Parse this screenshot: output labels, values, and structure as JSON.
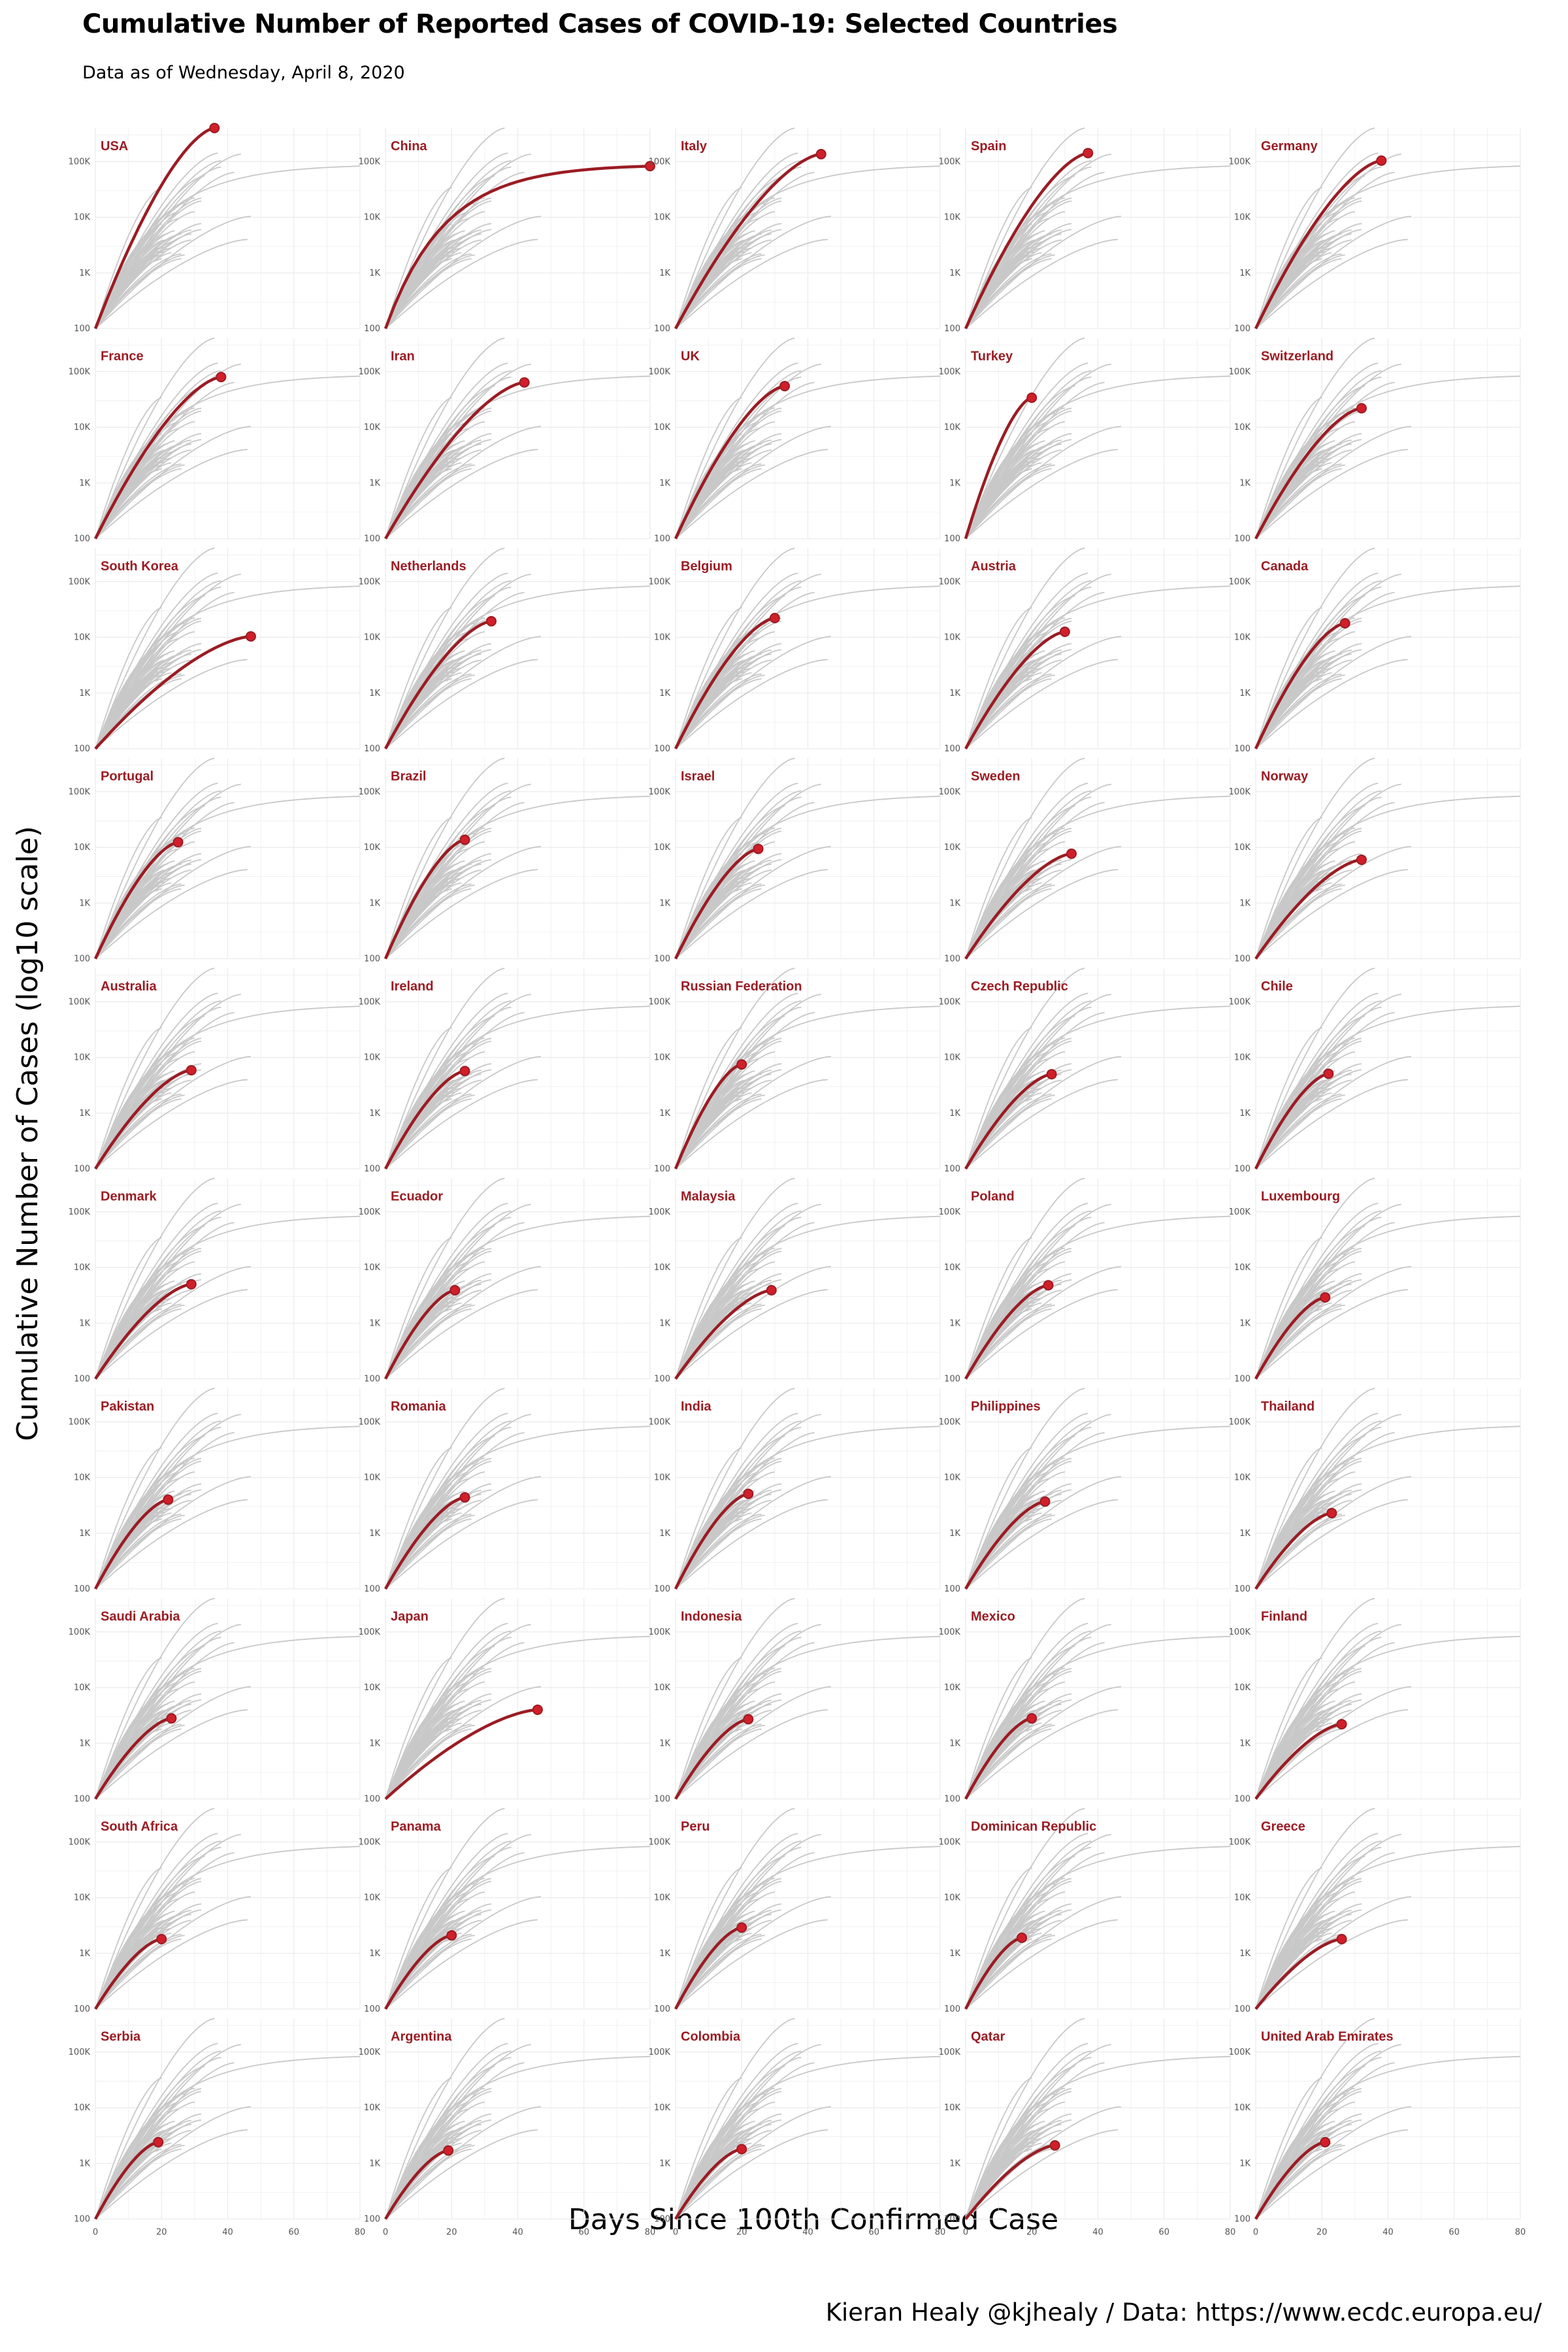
{
  "title": "Cumulative Number of Reported Cases of COVID-19: Selected Countries",
  "subtitle": "Data as of Wednesday, April  8, 2020",
  "caption": "Kieran Healy @kjhealy / Data: https://www.ecdc.europa.eu/",
  "colors": {
    "highlight": "#9b1c23",
    "highlight_point": "#d11f2a",
    "background_lines": "#c8c8c8",
    "grid": "#ececec"
  },
  "chart_data": {
    "type": "line",
    "layout": "small-multiples-10x5",
    "xlabel": "Days Since 100th Confirmed Case",
    "ylabel": "Cumulative Number of Cases (log10 scale)",
    "xlim": [
      0,
      80
    ],
    "ylim": [
      100,
      400000
    ],
    "y_scale": "log10",
    "x_ticks": [
      0,
      20,
      40,
      60,
      80
    ],
    "x_tick_labels": [
      "0",
      "20",
      "40",
      "60",
      "80"
    ],
    "y_ticks": [
      100,
      1000,
      10000,
      100000
    ],
    "y_tick_labels": [
      "100",
      "1K",
      "10K",
      "100K"
    ],
    "grid": true,
    "legend": "none",
    "series": [
      {
        "name": "USA",
        "last_day": 36,
        "last_cases": 400000
      },
      {
        "name": "China",
        "last_day": 80,
        "last_cases": 83000
      },
      {
        "name": "Italy",
        "last_day": 44,
        "last_cases": 136000
      },
      {
        "name": "Spain",
        "last_day": 37,
        "last_cases": 142000
      },
      {
        "name": "Germany",
        "last_day": 38,
        "last_cases": 104000
      },
      {
        "name": "France",
        "last_day": 38,
        "last_cases": 80000
      },
      {
        "name": "Iran",
        "last_day": 42,
        "last_cases": 64000
      },
      {
        "name": "UK",
        "last_day": 33,
        "last_cases": 55000
      },
      {
        "name": "Turkey",
        "last_day": 20,
        "last_cases": 34000
      },
      {
        "name": "Switzerland",
        "last_day": 32,
        "last_cases": 22000
      },
      {
        "name": "South Korea",
        "last_day": 47,
        "last_cases": 10400
      },
      {
        "name": "Netherlands",
        "last_day": 32,
        "last_cases": 19500
      },
      {
        "name": "Belgium",
        "last_day": 30,
        "last_cases": 22200
      },
      {
        "name": "Austria",
        "last_day": 30,
        "last_cases": 12600
      },
      {
        "name": "Canada",
        "last_day": 27,
        "last_cases": 17900
      },
      {
        "name": "Portugal",
        "last_day": 25,
        "last_cases": 12400
      },
      {
        "name": "Brazil",
        "last_day": 24,
        "last_cases": 13700
      },
      {
        "name": "Israel",
        "last_day": 25,
        "last_cases": 9400
      },
      {
        "name": "Sweden",
        "last_day": 32,
        "last_cases": 7700
      },
      {
        "name": "Norway",
        "last_day": 32,
        "last_cases": 6000
      },
      {
        "name": "Australia",
        "last_day": 29,
        "last_cases": 5900
      },
      {
        "name": "Ireland",
        "last_day": 24,
        "last_cases": 5700
      },
      {
        "name": "Russian Federation",
        "last_day": 20,
        "last_cases": 7500
      },
      {
        "name": "Czech Republic",
        "last_day": 26,
        "last_cases": 5000
      },
      {
        "name": "Chile",
        "last_day": 22,
        "last_cases": 5100
      },
      {
        "name": "Denmark",
        "last_day": 29,
        "last_cases": 5000
      },
      {
        "name": "Ecuador",
        "last_day": 21,
        "last_cases": 3900
      },
      {
        "name": "Malaysia",
        "last_day": 29,
        "last_cases": 3900
      },
      {
        "name": "Poland",
        "last_day": 25,
        "last_cases": 4800
      },
      {
        "name": "Luxembourg",
        "last_day": 21,
        "last_cases": 2900
      },
      {
        "name": "Pakistan",
        "last_day": 22,
        "last_cases": 4000
      },
      {
        "name": "Romania",
        "last_day": 24,
        "last_cases": 4400
      },
      {
        "name": "India",
        "last_day": 22,
        "last_cases": 5100
      },
      {
        "name": "Philippines",
        "last_day": 24,
        "last_cases": 3700
      },
      {
        "name": "Thailand",
        "last_day": 23,
        "last_cases": 2300
      },
      {
        "name": "Saudi Arabia",
        "last_day": 23,
        "last_cases": 2800
      },
      {
        "name": "Japan",
        "last_day": 46,
        "last_cases": 4000
      },
      {
        "name": "Indonesia",
        "last_day": 22,
        "last_cases": 2700
      },
      {
        "name": "Mexico",
        "last_day": 20,
        "last_cases": 2800
      },
      {
        "name": "Finland",
        "last_day": 26,
        "last_cases": 2200
      },
      {
        "name": "South Africa",
        "last_day": 20,
        "last_cases": 1800
      },
      {
        "name": "Panama",
        "last_day": 20,
        "last_cases": 2100
      },
      {
        "name": "Peru",
        "last_day": 20,
        "last_cases": 2900
      },
      {
        "name": "Dominican Republic",
        "last_day": 17,
        "last_cases": 1900
      },
      {
        "name": "Greece",
        "last_day": 26,
        "last_cases": 1800
      },
      {
        "name": "Serbia",
        "last_day": 19,
        "last_cases": 2400
      },
      {
        "name": "Argentina",
        "last_day": 19,
        "last_cases": 1700
      },
      {
        "name": "Colombia",
        "last_day": 20,
        "last_cases": 1800
      },
      {
        "name": "Qatar",
        "last_day": 27,
        "last_cases": 2100
      },
      {
        "name": "United Arab Emirates",
        "last_day": 21,
        "last_cases": 2400
      }
    ]
  }
}
